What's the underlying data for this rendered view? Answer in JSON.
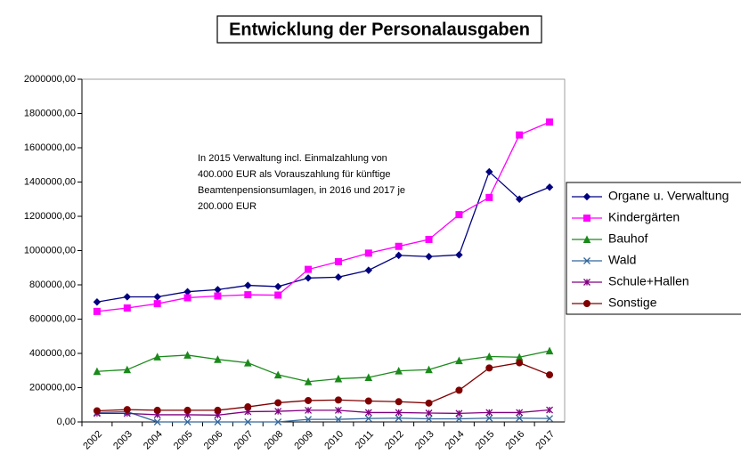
{
  "chart_data": {
    "type": "line",
    "title": "Entwicklung der Personalausgaben",
    "annotation": [
      "In 2015 Verwaltung  incl. Einmalzahlung von",
      "400.000 EUR als Vorauszahlung für künftige",
      "Beamtenpensionsumlagen, in 2016 und 2017 je",
      "200.000 EUR"
    ],
    "categories": [
      "2002",
      "2003",
      "2004",
      "2005",
      "2006",
      "2007",
      "2008",
      "2009",
      "2010",
      "2011",
      "2012",
      "2013",
      "2014",
      "2015",
      "2016",
      "2017"
    ],
    "series": [
      {
        "name": "Organe u. Verwaltung",
        "color": "#000080",
        "marker": "diamond",
        "values": [
          700000,
          730000,
          730000,
          760000,
          772000,
          797000,
          790000,
          840000,
          845000,
          885000,
          972000,
          965000,
          975000,
          1460000,
          1300000,
          1370000
        ]
      },
      {
        "name": "Kindergärten",
        "color": "#ff00ff",
        "marker": "square",
        "values": [
          645000,
          665000,
          690000,
          725000,
          735000,
          742000,
          740000,
          890000,
          935000,
          985000,
          1025000,
          1065000,
          1210000,
          1310000,
          1675000,
          1750000
        ]
      },
      {
        "name": "Bauhof",
        "color": "#1a8a1a",
        "marker": "triangle",
        "values": [
          295000,
          305000,
          380000,
          390000,
          365000,
          345000,
          275000,
          235000,
          252000,
          260000,
          298000,
          305000,
          358000,
          382000,
          378000,
          415000
        ]
      },
      {
        "name": "Wald",
        "color": "#336699",
        "marker": "x",
        "values": [
          55000,
          60000,
          0,
          0,
          0,
          0,
          0,
          15000,
          15000,
          20000,
          22000,
          18000,
          18000,
          22000,
          22000,
          20000
        ]
      },
      {
        "name": "Schule+Hallen",
        "color": "#800080",
        "marker": "star",
        "values": [
          50000,
          50000,
          42000,
          42000,
          40000,
          60000,
          62000,
          68000,
          68000,
          55000,
          55000,
          52000,
          50000,
          55000,
          55000,
          70000
        ]
      },
      {
        "name": "Sonstige",
        "color": "#800000",
        "marker": "circle",
        "values": [
          65000,
          72000,
          68000,
          68000,
          68000,
          88000,
          112000,
          125000,
          128000,
          122000,
          118000,
          110000,
          185000,
          315000,
          345000,
          275000
        ]
      }
    ],
    "ylim": [
      0,
      2000000
    ],
    "yticks": [
      {
        "value": 0,
        "label": "0,00"
      },
      {
        "value": 200000,
        "label": "200000,00"
      },
      {
        "value": 400000,
        "label": "400000,00"
      },
      {
        "value": 600000,
        "label": "600000,00"
      },
      {
        "value": 800000,
        "label": "800000,00"
      },
      {
        "value": 1000000,
        "label": "1000000,00"
      },
      {
        "value": 1200000,
        "label": "1200000,00"
      },
      {
        "value": 1400000,
        "label": "1400000,00"
      },
      {
        "value": 1600000,
        "label": "1600000,00"
      },
      {
        "value": 1800000,
        "label": "1800000,00"
      },
      {
        "value": 2000000,
        "label": "2000000,00"
      }
    ],
    "grid": false,
    "legend": "right"
  }
}
